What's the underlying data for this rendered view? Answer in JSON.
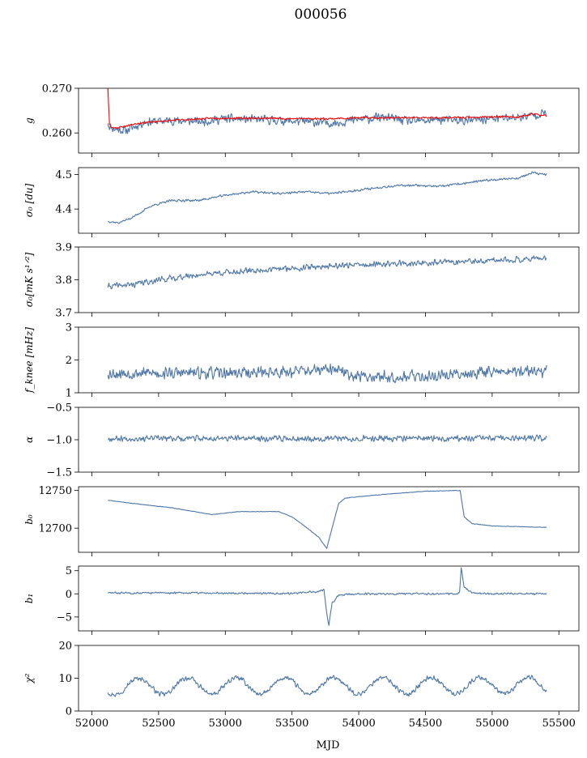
{
  "title": "000056",
  "colors": {
    "main": "#4e76a6",
    "secondary": "#ff0000"
  },
  "chart_data": {
    "type": "line",
    "title": "000056",
    "shared_x": true,
    "xlabel": "MJD",
    "xlim": [
      51900,
      55650
    ],
    "xticks": [
      52000,
      52500,
      53000,
      53500,
      54000,
      54500,
      55000,
      55500
    ],
    "x_start": 52120,
    "x_end": 55410,
    "panels": [
      {
        "ylabel": "g",
        "ylim": [
          0.2555,
          0.27
        ],
        "yticks": [
          0.26,
          0.27
        ],
        "yticklabels": [
          "0.260",
          "0.270"
        ],
        "series": [
          {
            "color": "#4e76a6",
            "noise": 0.0012,
            "seed": 11,
            "x": [
              52120,
              52130,
              52160,
              52250,
              52400,
              52600,
              52800,
              53000,
              53200,
              53400,
              53600,
              53800,
              54000,
              54200,
              54400,
              54600,
              54800,
              55000,
              55200,
              55410
            ],
            "y": [
              0.2625,
              0.2615,
              0.261,
              0.2605,
              0.2625,
              0.2628,
              0.2625,
              0.2632,
              0.263,
              0.2628,
              0.2625,
              0.2622,
              0.263,
              0.2635,
              0.2625,
              0.263,
              0.2627,
              0.2632,
              0.2635,
              0.2645
            ]
          },
          {
            "color": "#ff0000",
            "noise": 0.00025,
            "seed": 23,
            "width": 2.6,
            "x": [
              52120,
              52125,
              52132,
              52145,
              52200,
              52350,
              52600,
              52900,
              53300,
              53500,
              53800,
              54000,
              54300,
              54600,
              54900,
              55100,
              55200,
              55300,
              55410
            ],
            "y": [
              0.27,
              0.2665,
              0.262,
              0.2612,
              0.2612,
              0.2622,
              0.2628,
              0.2633,
              0.2633,
              0.2632,
              0.2632,
              0.2634,
              0.2634,
              0.2634,
              0.2635,
              0.2637,
              0.2635,
              0.2643,
              0.2638
            ]
          }
        ]
      },
      {
        "ylabel": "σ₀ [du]",
        "ylim": [
          4.33,
          4.52
        ],
        "yticks": [
          4.4,
          4.5
        ],
        "yticklabels": [
          "4.4",
          "4.5"
        ],
        "series": [
          {
            "color": "#4e76a6",
            "noise": 0.004,
            "seed": 37,
            "x": [
              52120,
              52200,
              52300,
              52450,
              52600,
              52800,
              53000,
              53200,
              53400,
              53600,
              53800,
              54000,
              54200,
              54400,
              54600,
              54800,
              55000,
              55200,
              55300,
              55400
            ],
            "y": [
              4.365,
              4.36,
              4.375,
              4.41,
              4.425,
              4.425,
              4.44,
              4.45,
              4.445,
              4.45,
              4.445,
              4.455,
              4.465,
              4.47,
              4.465,
              4.475,
              4.485,
              4.49,
              4.505,
              4.5
            ]
          }
        ]
      },
      {
        "ylabel": "σ₀[mK s¹ᐟ²]",
        "ylim": [
          3.7,
          3.9
        ],
        "yticks": [
          3.7,
          3.8,
          3.9
        ],
        "yticklabels": [
          "3.7",
          "3.8",
          "3.9"
        ],
        "series": [
          {
            "color": "#4e76a6",
            "noise": 0.011,
            "seed": 41,
            "x": [
              52120,
              52300,
              52500,
              52700,
              52900,
              53100,
              53300,
              53500,
              53700,
              53900,
              54100,
              54300,
              54500,
              54700,
              54900,
              55100,
              55300,
              55410
            ],
            "y": [
              3.78,
              3.785,
              3.8,
              3.81,
              3.82,
              3.825,
              3.83,
              3.835,
              3.84,
              3.845,
              3.845,
              3.85,
              3.85,
              3.855,
              3.855,
              3.86,
              3.865,
              3.865
            ]
          }
        ]
      },
      {
        "ylabel": "f_knee [mHz]",
        "ylim": [
          1,
          3
        ],
        "yticks": [
          1,
          2,
          3
        ],
        "yticklabels": [
          "1",
          "2",
          "3"
        ],
        "series": [
          {
            "color": "#4e76a6",
            "noise": 0.22,
            "seed": 53,
            "x": [
              52120,
              52500,
              53000,
              53500,
              53800,
              54000,
              54500,
              55000,
              55410
            ],
            "y": [
              1.6,
              1.6,
              1.6,
              1.65,
              1.7,
              1.5,
              1.5,
              1.65,
              1.65
            ]
          }
        ]
      },
      {
        "ylabel": "α",
        "ylim": [
          -1.5,
          -0.5
        ],
        "yticks": [
          -1.5,
          -1.0,
          -0.5
        ],
        "yticklabels": [
          "−1.5",
          "−1.0",
          "−0.5"
        ],
        "series": [
          {
            "color": "#4e76a6",
            "noise": 0.055,
            "seed": 67,
            "x": [
              52120,
              53000,
              54000,
              55000,
              55410
            ],
            "y": [
              -0.98,
              -0.98,
              -0.98,
              -0.98,
              -0.98
            ]
          }
        ]
      },
      {
        "ylabel": "b₀",
        "ylim": [
          12668,
          12755
        ],
        "yticks": [
          12700,
          12750
        ],
        "yticklabels": [
          "12700",
          "12750"
        ],
        "series": [
          {
            "color": "#4e76a6",
            "noise": 0.35,
            "seed": 71,
            "x": [
              52120,
              52300,
              52600,
              52900,
              53100,
              53300,
              53400,
              53500,
              53600,
              53700,
              53760,
              53800,
              53850,
              53900,
              54200,
              54500,
              54760,
              54790,
              54850,
              55000,
              55410
            ],
            "y": [
              12737,
              12733,
              12727,
              12718,
              12722,
              12722,
              12722,
              12715,
              12702,
              12688,
              12673,
              12700,
              12733,
              12740,
              12745,
              12749,
              12750,
              12715,
              12706,
              12703,
              12701
            ]
          }
        ]
      },
      {
        "ylabel": "b₁",
        "ylim": [
          -8,
          6
        ],
        "yticks": [
          -5,
          0,
          5
        ],
        "yticklabels": [
          "−5",
          "0",
          "5"
        ],
        "series": [
          {
            "color": "#4e76a6",
            "noise": 0.25,
            "seed": 83,
            "x": [
              52120,
              52800,
              53500,
              53700,
              53740,
              53755,
              53775,
              53800,
              53850,
              54000,
              54700,
              54755,
              54768,
              54790,
              54850,
              55000,
              55410
            ],
            "y": [
              0.2,
              0.2,
              0.1,
              0.5,
              1,
              -3,
              -7,
              -2,
              -0.3,
              0,
              0,
              0.2,
              5.5,
              1.5,
              0.2,
              0,
              0
            ]
          }
        ]
      },
      {
        "ylabel": "χ²",
        "ylim": [
          0,
          20
        ],
        "yticks": [
          0,
          10,
          20
        ],
        "yticklabels": [
          "0",
          "10",
          "20"
        ],
        "series": [
          {
            "color": "#4e76a6",
            "noise": 0.9,
            "seed": 97,
            "periodic": {
              "period": 365.25,
              "amplitude": 2.5,
              "phase": 52260
            },
            "x": [
              52120,
              53000,
              54000,
              55000,
              55410
            ],
            "y": [
              7.5,
              7.6,
              7.7,
              7.8,
              7.8
            ]
          }
        ]
      }
    ]
  }
}
